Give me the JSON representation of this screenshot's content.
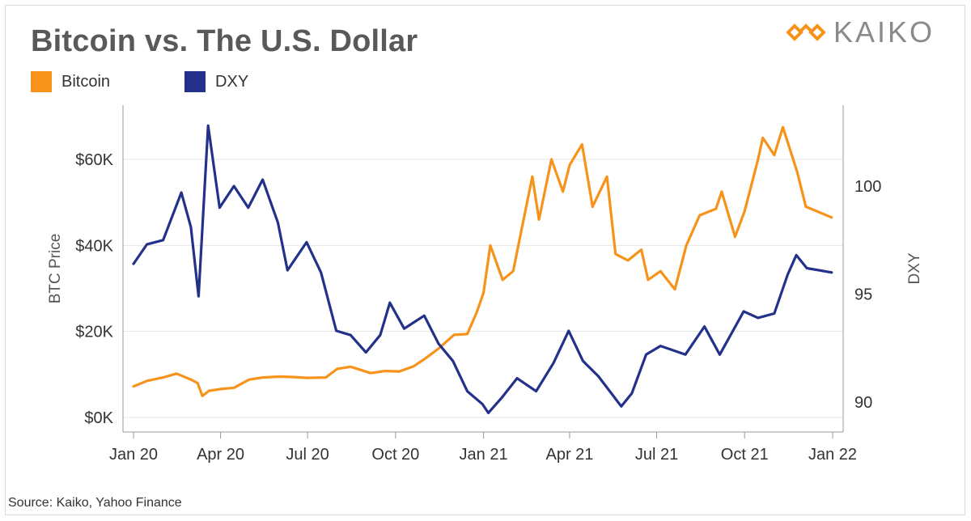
{
  "title": "Bitcoin vs. The U.S. Dollar",
  "logo": {
    "text": "KAIKO",
    "icon": "kaiko-diamond-icon"
  },
  "source": "Source: Kaiko, Yahoo Finance",
  "colors": {
    "bitcoin": "#f7931a",
    "dxy": "#24318a",
    "grid": "#e6e6e6",
    "axis": "#999999"
  },
  "chart_data": {
    "type": "line",
    "title": "Bitcoin vs. The U.S. Dollar",
    "legend_position": "top-left",
    "grid": true,
    "x_ticks": [
      "Jan 20",
      "Apr 20",
      "Jul 20",
      "Oct 20",
      "Jan 21",
      "Apr 21",
      "Jul 21",
      "Oct 21",
      "Jan 22"
    ],
    "xlim": [
      "2020-01-01",
      "2022-01-01"
    ],
    "y_left": {
      "label": "BTC Price",
      "ticks": [
        "$0K",
        "$20K",
        "$40K",
        "$60K"
      ],
      "tick_values": [
        0,
        20000,
        40000,
        60000
      ],
      "ylim": [
        0,
        70000
      ]
    },
    "y_right": {
      "label": "DXY",
      "ticks": [
        "90",
        "95",
        "100"
      ],
      "tick_values": [
        90,
        95,
        100
      ],
      "ylim": [
        89.4,
        103.2
      ]
    },
    "series": [
      {
        "name": "Bitcoin",
        "axis": "left",
        "points": [
          [
            "2020-01-01",
            7200
          ],
          [
            "2020-01-15",
            8500
          ],
          [
            "2020-02-01",
            9300
          ],
          [
            "2020-02-15",
            10200
          ],
          [
            "2020-03-01",
            8800
          ],
          [
            "2020-03-08",
            8000
          ],
          [
            "2020-03-13",
            5000
          ],
          [
            "2020-03-20",
            6200
          ],
          [
            "2020-04-01",
            6600
          ],
          [
            "2020-04-15",
            6900
          ],
          [
            "2020-05-01",
            8800
          ],
          [
            "2020-05-15",
            9300
          ],
          [
            "2020-06-01",
            9500
          ],
          [
            "2020-06-15",
            9400
          ],
          [
            "2020-07-01",
            9200
          ],
          [
            "2020-07-20",
            9300
          ],
          [
            "2020-08-01",
            11300
          ],
          [
            "2020-08-15",
            11800
          ],
          [
            "2020-09-05",
            10300
          ],
          [
            "2020-09-20",
            10800
          ],
          [
            "2020-10-05",
            10700
          ],
          [
            "2020-10-20",
            11900
          ],
          [
            "2020-11-01",
            13700
          ],
          [
            "2020-11-15",
            16000
          ],
          [
            "2020-12-01",
            19200
          ],
          [
            "2020-12-15",
            19400
          ],
          [
            "2020-12-25",
            24500
          ],
          [
            "2021-01-01",
            29000
          ],
          [
            "2021-01-08",
            40000
          ],
          [
            "2021-01-21",
            32000
          ],
          [
            "2021-02-01",
            34000
          ],
          [
            "2021-02-10",
            44000
          ],
          [
            "2021-02-21",
            56000
          ],
          [
            "2021-02-28",
            46000
          ],
          [
            "2021-03-13",
            60000
          ],
          [
            "2021-03-25",
            52500
          ],
          [
            "2021-04-01",
            58700
          ],
          [
            "2021-04-14",
            63500
          ],
          [
            "2021-04-25",
            49000
          ],
          [
            "2021-05-10",
            56000
          ],
          [
            "2021-05-19",
            38000
          ],
          [
            "2021-06-01",
            36500
          ],
          [
            "2021-06-15",
            39000
          ],
          [
            "2021-06-22",
            32000
          ],
          [
            "2021-07-05",
            34000
          ],
          [
            "2021-07-20",
            29800
          ],
          [
            "2021-08-01",
            40000
          ],
          [
            "2021-08-15",
            47000
          ],
          [
            "2021-09-01",
            48500
          ],
          [
            "2021-09-07",
            52500
          ],
          [
            "2021-09-21",
            42000
          ],
          [
            "2021-10-01",
            48000
          ],
          [
            "2021-10-15",
            60000
          ],
          [
            "2021-10-20",
            65000
          ],
          [
            "2021-11-01",
            61000
          ],
          [
            "2021-11-10",
            67500
          ],
          [
            "2021-11-25",
            57000
          ],
          [
            "2021-12-04",
            49000
          ],
          [
            "2021-12-15",
            48000
          ],
          [
            "2021-12-31",
            46500
          ]
        ]
      },
      {
        "name": "DXY",
        "axis": "right",
        "points": [
          [
            "2020-01-01",
            96.4
          ],
          [
            "2020-01-15",
            97.3
          ],
          [
            "2020-02-01",
            97.5
          ],
          [
            "2020-02-20",
            99.7
          ],
          [
            "2020-03-01",
            98.1
          ],
          [
            "2020-03-09",
            94.9
          ],
          [
            "2020-03-19",
            102.8
          ],
          [
            "2020-03-31",
            99.0
          ],
          [
            "2020-04-15",
            100.0
          ],
          [
            "2020-04-30",
            99.0
          ],
          [
            "2020-05-15",
            100.3
          ],
          [
            "2020-05-31",
            98.3
          ],
          [
            "2020-06-10",
            96.1
          ],
          [
            "2020-06-30",
            97.4
          ],
          [
            "2020-07-15",
            96.0
          ],
          [
            "2020-07-31",
            93.3
          ],
          [
            "2020-08-15",
            93.1
          ],
          [
            "2020-08-31",
            92.3
          ],
          [
            "2020-09-15",
            93.1
          ],
          [
            "2020-09-25",
            94.6
          ],
          [
            "2020-10-10",
            93.4
          ],
          [
            "2020-10-31",
            94.0
          ],
          [
            "2020-11-15",
            92.7
          ],
          [
            "2020-11-30",
            91.9
          ],
          [
            "2020-12-15",
            90.5
          ],
          [
            "2020-12-31",
            89.9
          ],
          [
            "2021-01-06",
            89.5
          ],
          [
            "2021-01-20",
            90.2
          ],
          [
            "2021-02-05",
            91.1
          ],
          [
            "2021-02-25",
            90.5
          ],
          [
            "2021-03-15",
            91.8
          ],
          [
            "2021-03-31",
            93.3
          ],
          [
            "2021-04-15",
            91.9
          ],
          [
            "2021-05-01",
            91.2
          ],
          [
            "2021-05-25",
            89.8
          ],
          [
            "2021-06-05",
            90.4
          ],
          [
            "2021-06-20",
            92.2
          ],
          [
            "2021-07-05",
            92.6
          ],
          [
            "2021-07-31",
            92.2
          ],
          [
            "2021-08-20",
            93.5
          ],
          [
            "2021-09-05",
            92.2
          ],
          [
            "2021-09-30",
            94.2
          ],
          [
            "2021-10-15",
            93.9
          ],
          [
            "2021-11-01",
            94.1
          ],
          [
            "2021-11-15",
            95.9
          ],
          [
            "2021-11-24",
            96.8
          ],
          [
            "2021-12-05",
            96.2
          ],
          [
            "2021-12-31",
            96.0
          ]
        ]
      }
    ]
  }
}
